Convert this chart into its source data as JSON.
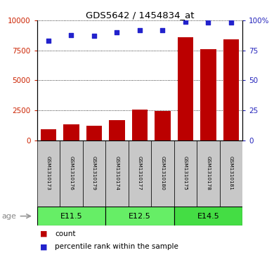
{
  "title": "GDS5642 / 1454834_at",
  "samples": [
    "GSM1310173",
    "GSM1310176",
    "GSM1310179",
    "GSM1310174",
    "GSM1310177",
    "GSM1310180",
    "GSM1310175",
    "GSM1310178",
    "GSM1310181"
  ],
  "counts": [
    900,
    1350,
    1200,
    1700,
    2550,
    2450,
    8600,
    7600,
    8400
  ],
  "percentiles": [
    83,
    88,
    87,
    90,
    92,
    92,
    99,
    98,
    98
  ],
  "groups": [
    {
      "label": "E11.5",
      "color": "#66EE66"
    },
    {
      "label": "E12.5",
      "color": "#66EE66"
    },
    {
      "label": "E14.5",
      "color": "#44DD44"
    }
  ],
  "bar_color": "#BB0000",
  "dot_color": "#2222CC",
  "left_axis_color": "#CC2200",
  "right_axis_color": "#2222BB",
  "ylim_left": [
    0,
    10000
  ],
  "ylim_right": [
    0,
    100
  ],
  "yticks_left": [
    0,
    2500,
    5000,
    7500,
    10000
  ],
  "yticks_right": [
    0,
    25,
    50,
    75,
    100
  ],
  "ytick_labels_left": [
    "0",
    "2500",
    "5000",
    "7500",
    "10000"
  ],
  "ytick_labels_right": [
    "0",
    "25",
    "50",
    "75",
    "100%"
  ],
  "bg_color": "#FFFFFF",
  "label_count": "count",
  "label_percentile": "percentile rank within the sample",
  "age_label": "age",
  "sample_bg": "#C8C8C8",
  "group_border_color": "#000000"
}
